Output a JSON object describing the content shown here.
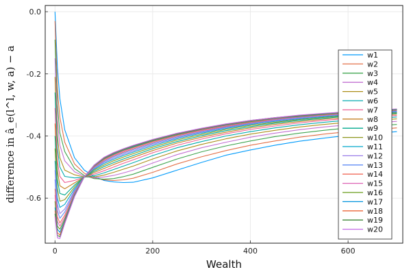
{
  "chart_data": {
    "type": "line",
    "title": "",
    "xlabel": "Wealth",
    "ylabel": "difference in â_e(l^l, w, a) − a",
    "xlim": [
      -20,
      712
    ],
    "ylim": [
      -0.745,
      0.02
    ],
    "xticks": [
      0,
      200,
      400,
      600
    ],
    "yticks": [
      0.0,
      -0.2,
      -0.4,
      -0.6
    ],
    "xtick_labels": [
      "0",
      "200",
      "400",
      "600"
    ],
    "ytick_labels": [
      "0.0",
      "-0.2",
      "-0.4",
      "-0.6"
    ],
    "grid": true,
    "legend_position": "right",
    "x": [
      0,
      5,
      10,
      20,
      40,
      60,
      80,
      100,
      120,
      140,
      160,
      200,
      250,
      300,
      350,
      400,
      450,
      500,
      550,
      600,
      650,
      700
    ],
    "series": [
      {
        "name": "w1",
        "color": "#009AFA",
        "values": [
          0.0,
          -0.18,
          -0.28,
          -0.38,
          -0.47,
          -0.51,
          -0.53,
          -0.543,
          -0.548,
          -0.55,
          -0.549,
          -0.535,
          -0.51,
          -0.485,
          -0.462,
          -0.445,
          -0.43,
          -0.417,
          -0.407,
          -0.398,
          -0.392,
          -0.386
        ]
      },
      {
        "name": "w2",
        "color": "#E36F47",
        "values": [
          -0.03,
          -0.25,
          -0.34,
          -0.42,
          -0.49,
          -0.52,
          -0.535,
          -0.541,
          -0.543,
          -0.541,
          -0.536,
          -0.517,
          -0.49,
          -0.467,
          -0.447,
          -0.43,
          -0.416,
          -0.404,
          -0.394,
          -0.386,
          -0.38,
          -0.374
        ]
      },
      {
        "name": "w3",
        "color": "#3EA44E",
        "values": [
          -0.09,
          -0.3,
          -0.39,
          -0.45,
          -0.505,
          -0.527,
          -0.537,
          -0.539,
          -0.537,
          -0.531,
          -0.523,
          -0.501,
          -0.474,
          -0.451,
          -0.432,
          -0.416,
          -0.402,
          -0.391,
          -0.382,
          -0.374,
          -0.368,
          -0.363
        ]
      },
      {
        "name": "w4",
        "color": "#C271D2",
        "values": [
          -0.15,
          -0.35,
          -0.43,
          -0.48,
          -0.515,
          -0.53,
          -0.535,
          -0.532,
          -0.527,
          -0.519,
          -0.51,
          -0.487,
          -0.46,
          -0.438,
          -0.42,
          -0.404,
          -0.391,
          -0.38,
          -0.371,
          -0.364,
          -0.358,
          -0.353
        ]
      },
      {
        "name": "w5",
        "color": "#AC8D18",
        "values": [
          -0.21,
          -0.4,
          -0.47,
          -0.51,
          -0.525,
          -0.532,
          -0.532,
          -0.526,
          -0.517,
          -0.507,
          -0.497,
          -0.474,
          -0.448,
          -0.427,
          -0.409,
          -0.394,
          -0.382,
          -0.371,
          -0.363,
          -0.356,
          -0.35,
          -0.345
        ]
      },
      {
        "name": "w6",
        "color": "#00A9AD",
        "values": [
          -0.26,
          -0.44,
          -0.5,
          -0.53,
          -0.535,
          -0.533,
          -0.528,
          -0.519,
          -0.508,
          -0.497,
          -0.486,
          -0.463,
          -0.438,
          -0.418,
          -0.4,
          -0.386,
          -0.374,
          -0.364,
          -0.356,
          -0.349,
          -0.344,
          -0.339
        ]
      },
      {
        "name": "w7",
        "color": "#ED5E93",
        "values": [
          -0.31,
          -0.48,
          -0.53,
          -0.55,
          -0.543,
          -0.533,
          -0.523,
          -0.512,
          -0.5,
          -0.488,
          -0.477,
          -0.454,
          -0.43,
          -0.41,
          -0.393,
          -0.379,
          -0.368,
          -0.358,
          -0.35,
          -0.344,
          -0.338,
          -0.334
        ]
      },
      {
        "name": "w8",
        "color": "#C68125",
        "values": [
          -0.36,
          -0.51,
          -0.56,
          -0.57,
          -0.551,
          -0.533,
          -0.518,
          -0.505,
          -0.492,
          -0.48,
          -0.469,
          -0.447,
          -0.423,
          -0.404,
          -0.388,
          -0.374,
          -0.363,
          -0.354,
          -0.346,
          -0.34,
          -0.334,
          -0.33
        ]
      },
      {
        "name": "w9",
        "color": "#00A98D",
        "values": [
          -0.4,
          -0.54,
          -0.585,
          -0.59,
          -0.558,
          -0.532,
          -0.514,
          -0.499,
          -0.486,
          -0.474,
          -0.463,
          -0.441,
          -0.418,
          -0.399,
          -0.383,
          -0.37,
          -0.359,
          -0.35,
          -0.343,
          -0.336,
          -0.331,
          -0.327
        ]
      },
      {
        "name": "w10",
        "color": "#8E971E",
        "values": [
          -0.44,
          -0.57,
          -0.61,
          -0.605,
          -0.564,
          -0.532,
          -0.51,
          -0.494,
          -0.48,
          -0.468,
          -0.457,
          -0.436,
          -0.413,
          -0.395,
          -0.379,
          -0.366,
          -0.356,
          -0.347,
          -0.34,
          -0.334,
          -0.329,
          -0.325
        ]
      },
      {
        "name": "w11",
        "color": "#00A8CB",
        "values": [
          -0.48,
          -0.6,
          -0.63,
          -0.62,
          -0.57,
          -0.532,
          -0.507,
          -0.489,
          -0.475,
          -0.463,
          -0.452,
          -0.431,
          -0.409,
          -0.391,
          -0.376,
          -0.363,
          -0.353,
          -0.345,
          -0.338,
          -0.332,
          -0.327,
          -0.323
        ]
      },
      {
        "name": "w12",
        "color": "#9B7FE9",
        "values": [
          -0.51,
          -0.62,
          -0.65,
          -0.635,
          -0.575,
          -0.532,
          -0.504,
          -0.485,
          -0.471,
          -0.459,
          -0.448,
          -0.427,
          -0.406,
          -0.388,
          -0.373,
          -0.361,
          -0.351,
          -0.343,
          -0.336,
          -0.33,
          -0.325,
          -0.321
        ]
      },
      {
        "name": "w13",
        "color": "#618DF6",
        "values": [
          -0.54,
          -0.64,
          -0.665,
          -0.645,
          -0.579,
          -0.532,
          -0.502,
          -0.482,
          -0.467,
          -0.455,
          -0.444,
          -0.424,
          -0.403,
          -0.386,
          -0.371,
          -0.359,
          -0.349,
          -0.341,
          -0.334,
          -0.328,
          -0.324,
          -0.32
        ]
      },
      {
        "name": "w14",
        "color": "#F16C5C",
        "values": [
          -0.57,
          -0.66,
          -0.68,
          -0.655,
          -0.583,
          -0.532,
          -0.5,
          -0.479,
          -0.464,
          -0.452,
          -0.441,
          -0.421,
          -0.4,
          -0.383,
          -0.369,
          -0.357,
          -0.347,
          -0.339,
          -0.333,
          -0.327,
          -0.322,
          -0.318
        ]
      },
      {
        "name": "w15",
        "color": "#DD64B5",
        "values": [
          -0.59,
          -0.675,
          -0.69,
          -0.662,
          -0.586,
          -0.532,
          -0.498,
          -0.476,
          -0.461,
          -0.449,
          -0.438,
          -0.418,
          -0.398,
          -0.381,
          -0.367,
          -0.355,
          -0.346,
          -0.338,
          -0.331,
          -0.326,
          -0.321,
          -0.317
        ]
      },
      {
        "name": "w16",
        "color": "#6B9D1D",
        "values": [
          -0.61,
          -0.69,
          -0.7,
          -0.668,
          -0.589,
          -0.532,
          -0.497,
          -0.474,
          -0.459,
          -0.446,
          -0.436,
          -0.416,
          -0.396,
          -0.379,
          -0.365,
          -0.354,
          -0.344,
          -0.337,
          -0.33,
          -0.325,
          -0.32,
          -0.316
        ]
      },
      {
        "name": "w17",
        "color": "#0092DE",
        "values": [
          -0.63,
          -0.7,
          -0.71,
          -0.673,
          -0.591,
          -0.532,
          -0.496,
          -0.472,
          -0.457,
          -0.444,
          -0.434,
          -0.414,
          -0.394,
          -0.378,
          -0.364,
          -0.352,
          -0.343,
          -0.336,
          -0.329,
          -0.324,
          -0.319,
          -0.315
        ]
      },
      {
        "name": "w18",
        "color": "#EC6638",
        "values": [
          -0.64,
          -0.712,
          -0.718,
          -0.677,
          -0.593,
          -0.532,
          -0.495,
          -0.471,
          -0.455,
          -0.443,
          -0.432,
          -0.413,
          -0.393,
          -0.377,
          -0.363,
          -0.351,
          -0.342,
          -0.335,
          -0.328,
          -0.323,
          -0.318,
          -0.314
        ]
      },
      {
        "name": "w19",
        "color": "#3E8636",
        "values": [
          -0.65,
          -0.72,
          -0.724,
          -0.68,
          -0.594,
          -0.532,
          -0.494,
          -0.47,
          -0.454,
          -0.442,
          -0.431,
          -0.412,
          -0.392,
          -0.376,
          -0.362,
          -0.35,
          -0.341,
          -0.334,
          -0.328,
          -0.322,
          -0.318,
          -0.314
        ]
      },
      {
        "name": "w20",
        "color": "#C56DE7",
        "values": [
          -0.66,
          -0.728,
          -0.73,
          -0.682,
          -0.595,
          -0.532,
          -0.494,
          -0.469,
          -0.453,
          -0.441,
          -0.43,
          -0.411,
          -0.391,
          -0.375,
          -0.361,
          -0.35,
          -0.341,
          -0.333,
          -0.327,
          -0.322,
          -0.317,
          -0.313
        ]
      }
    ]
  }
}
